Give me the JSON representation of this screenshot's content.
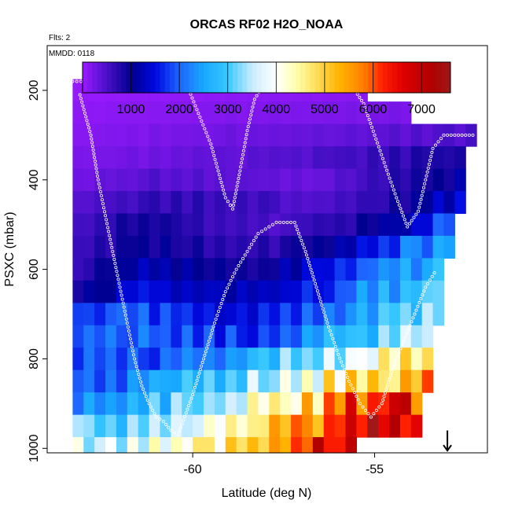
{
  "chart_data": {
    "type": "heatmap",
    "title": "ORCAS RF02 H2O_NOAA",
    "notes": [
      "Flts: 2",
      "MMDD: 0118"
    ],
    "xlabel": "Latitude (deg N)",
    "ylabel": "PSXC (mbar)",
    "xlim": [
      -64.0,
      -51.9
    ],
    "ylim": [
      1010,
      100
    ],
    "x_ticks": [
      -60,
      -55
    ],
    "y_ticks": [
      200,
      400,
      600,
      800,
      1000
    ],
    "colorbar": {
      "min": 0,
      "max": 7600,
      "ticks": [
        1000,
        2000,
        3000,
        4000,
        5000,
        6000,
        7000
      ],
      "stops": [
        {
          "v": 0,
          "color": "#9a1aff"
        },
        {
          "v": 500,
          "color": "#4a10c8"
        },
        {
          "v": 1000,
          "color": "#00008f"
        },
        {
          "v": 1500,
          "color": "#0008e0"
        },
        {
          "v": 2000,
          "color": "#1e64ff"
        },
        {
          "v": 2500,
          "color": "#18a8ff"
        },
        {
          "v": 3000,
          "color": "#38c8ff"
        },
        {
          "v": 3500,
          "color": "#c8ecff"
        },
        {
          "v": 4000,
          "color": "#ffffff"
        },
        {
          "v": 4400,
          "color": "#ffffb0"
        },
        {
          "v": 4800,
          "color": "#ffe060"
        },
        {
          "v": 5300,
          "color": "#ffb400"
        },
        {
          "v": 5800,
          "color": "#ff8000"
        },
        {
          "v": 6200,
          "color": "#ff2000"
        },
        {
          "v": 6600,
          "color": "#e00000"
        },
        {
          "v": 7200,
          "color": "#b00000"
        },
        {
          "v": 7600,
          "color": "#a01818"
        }
      ]
    },
    "grid": false,
    "lat_bands": [
      -63.3,
      -63.0,
      -62.7,
      -62.4,
      -62.1,
      -61.8,
      -61.5,
      -61.2,
      -60.9,
      -60.6,
      -60.3,
      -60.0,
      -59.7,
      -59.4,
      -59.1,
      -58.8,
      -58.5,
      -58.2,
      -57.9,
      -57.6,
      -57.3,
      -57.0,
      -56.7,
      -56.4,
      -56.1,
      -55.8,
      -55.5,
      -55.2,
      -54.9,
      -54.6,
      -54.3,
      -54.0,
      -53.7,
      -53.4,
      -53.1,
      -52.8,
      -52.5,
      -52.2
    ],
    "rows": [
      {
        "p": [
          175,
          225
        ],
        "x": [
          -63.3,
          -59.7,
          -59.7,
          -55.2
        ],
        "v": [
          30,
          60,
          90,
          120
        ]
      },
      {
        "p": [
          225,
          275
        ],
        "x": [
          -63.3,
          -54.0
        ],
        "v": [
          80,
          160,
          220
        ]
      },
      {
        "p": [
          275,
          325
        ],
        "x": [
          -63.3,
          -52.2
        ],
        "v": [
          120,
          250,
          350,
          500
        ]
      },
      {
        "p": [
          325,
          375
        ],
        "x": [
          -63.3,
          -52.5
        ],
        "v": [
          180,
          300,
          420,
          600,
          900
        ]
      },
      {
        "p": [
          375,
          425
        ],
        "x": [
          -63.3,
          -52.5
        ],
        "v": [
          260,
          450,
          380,
          300,
          700,
          1100
        ]
      },
      {
        "p": [
          425,
          475
        ],
        "x": [
          -63.3,
          -52.5
        ],
        "v": [
          400,
          700,
          600,
          450,
          800,
          1500
        ]
      },
      {
        "p": [
          475,
          525
        ],
        "x": [
          -63.3,
          -52.8
        ],
        "v": [
          500,
          900,
          650,
          500,
          700,
          1100,
          2200
        ]
      },
      {
        "p": [
          525,
          575
        ],
        "x": [
          -63.3,
          -52.8
        ],
        "v": [
          600,
          1000,
          800,
          700,
          1100,
          1900,
          2600
        ]
      },
      {
        "p": [
          575,
          625
        ],
        "x": [
          -63.3,
          -53.1
        ],
        "v": [
          700,
          1200,
          1000,
          900,
          1500,
          2300,
          2800
        ]
      },
      {
        "p": [
          625,
          675
        ],
        "x": [
          -63.3,
          -53.1
        ],
        "v": [
          900,
          1500,
          1300,
          1200,
          1700,
          2600,
          3000
        ]
      },
      {
        "p": [
          675,
          725
        ],
        "x": [
          -63.3,
          -53.1
        ],
        "v": [
          1800,
          1900,
          1600,
          1500,
          2200,
          2900,
          3400
        ]
      },
      {
        "p": [
          725,
          775
        ],
        "x": [
          -63.3,
          -53.4
        ],
        "v": [
          1900,
          2000,
          1800,
          1700,
          2400,
          3100,
          3600
        ]
      },
      {
        "p": [
          775,
          825
        ],
        "x": [
          -63.6,
          -53.4
        ],
        "v": [
          2000,
          1800,
          2100,
          2600,
          3300,
          4200,
          4700
        ]
      },
      {
        "p": [
          825,
          875
        ],
        "x": [
          -63.6,
          -53.4
        ],
        "v": [
          1900,
          2200,
          2700,
          3300,
          4200,
          5000,
          5300
        ]
      },
      {
        "p": [
          875,
          925
        ],
        "x": [
          -63.6,
          -53.7
        ],
        "v": [
          2000,
          2600,
          3000,
          3800,
          5000,
          6200,
          6600
        ]
      },
      {
        "p": [
          925,
          975
        ],
        "x": [
          -63.6,
          -53.7
        ],
        "v": [
          3200,
          3000,
          3600,
          4300,
          5600,
          6800,
          7400
        ]
      },
      {
        "p": [
          975,
          1010
        ],
        "x": [
          -63.6,
          -55.5
        ],
        "v": [
          3500,
          3700,
          4200,
          5000,
          6000,
          6500
        ]
      }
    ],
    "track": [
      {
        "lat": -63.3,
        "p": 180
      },
      {
        "lat": -62.5,
        "p": 180
      },
      {
        "lat": -61.5,
        "p": 180
      },
      {
        "lat": -60.5,
        "p": 180
      },
      {
        "lat": -60.1,
        "p": 200
      },
      {
        "lat": -59.8,
        "p": 260
      },
      {
        "lat": -59.5,
        "p": 320
      },
      {
        "lat": -59.3,
        "p": 380
      },
      {
        "lat": -59.1,
        "p": 440
      },
      {
        "lat": -58.9,
        "p": 465
      },
      {
        "lat": -58.7,
        "p": 380
      },
      {
        "lat": -58.5,
        "p": 290
      },
      {
        "lat": -58.3,
        "p": 220
      },
      {
        "lat": -58.0,
        "p": 180
      },
      {
        "lat": -57.5,
        "p": 180
      },
      {
        "lat": -56.5,
        "p": 180
      },
      {
        "lat": -55.7,
        "p": 180
      },
      {
        "lat": -55.3,
        "p": 230
      },
      {
        "lat": -55.0,
        "p": 300
      },
      {
        "lat": -54.7,
        "p": 370
      },
      {
        "lat": -54.4,
        "p": 440
      },
      {
        "lat": -54.1,
        "p": 505
      },
      {
        "lat": -53.8,
        "p": 470
      },
      {
        "lat": -53.6,
        "p": 400
      },
      {
        "lat": -53.4,
        "p": 330
      },
      {
        "lat": -53.1,
        "p": 300
      },
      {
        "lat": -52.6,
        "p": 300
      },
      {
        "lat": -52.2,
        "p": 300
      }
    ],
    "track2": [
      {
        "lat": -63.1,
        "p": 210
      },
      {
        "lat": -62.8,
        "p": 300
      },
      {
        "lat": -62.6,
        "p": 400
      },
      {
        "lat": -62.4,
        "p": 480
      },
      {
        "lat": -62.2,
        "p": 560
      },
      {
        "lat": -62.0,
        "p": 640
      },
      {
        "lat": -61.8,
        "p": 720
      },
      {
        "lat": -61.6,
        "p": 800
      },
      {
        "lat": -61.4,
        "p": 860
      },
      {
        "lat": -61.2,
        "p": 900
      },
      {
        "lat": -61.0,
        "p": 930
      },
      {
        "lat": -60.8,
        "p": 940
      },
      {
        "lat": -60.6,
        "p": 960
      },
      {
        "lat": -60.4,
        "p": 970
      },
      {
        "lat": -60.0,
        "p": 880
      },
      {
        "lat": -59.7,
        "p": 800
      },
      {
        "lat": -59.4,
        "p": 720
      },
      {
        "lat": -59.1,
        "p": 650
      },
      {
        "lat": -58.8,
        "p": 600
      },
      {
        "lat": -58.5,
        "p": 560
      },
      {
        "lat": -58.2,
        "p": 520
      },
      {
        "lat": -57.7,
        "p": 495
      },
      {
        "lat": -57.2,
        "p": 495
      },
      {
        "lat": -56.9,
        "p": 560
      },
      {
        "lat": -56.6,
        "p": 640
      },
      {
        "lat": -56.3,
        "p": 720
      },
      {
        "lat": -56.0,
        "p": 790
      },
      {
        "lat": -55.7,
        "p": 850
      },
      {
        "lat": -55.4,
        "p": 900
      },
      {
        "lat": -55.1,
        "p": 930
      },
      {
        "lat": -54.8,
        "p": 900
      },
      {
        "lat": -54.5,
        "p": 820
      },
      {
        "lat": -54.2,
        "p": 760
      },
      {
        "lat": -53.9,
        "p": 700
      },
      {
        "lat": -53.6,
        "p": 640
      },
      {
        "lat": -53.3,
        "p": 600
      }
    ],
    "marker": {
      "lat": -53.0,
      "p1": 960,
      "p2": 1005
    }
  }
}
